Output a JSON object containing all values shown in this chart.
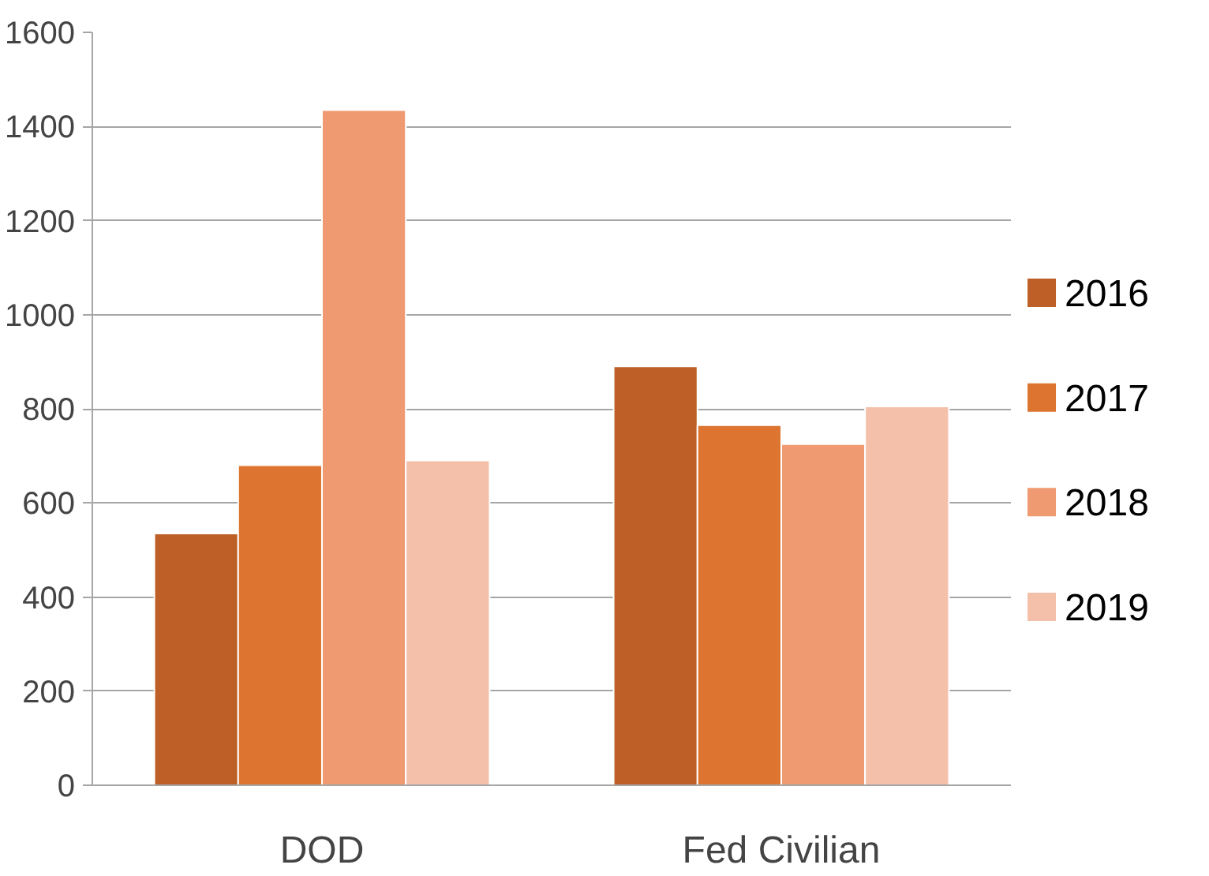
{
  "chart_data": {
    "type": "bar",
    "categories": [
      "DOD",
      "Fed Civilian"
    ],
    "series": [
      {
        "name": "2016",
        "color": "#bd5f26",
        "values": [
          535,
          890
        ]
      },
      {
        "name": "2017",
        "color": "#dd7530",
        "values": [
          680,
          765
        ]
      },
      {
        "name": "2018",
        "color": "#ef9a70",
        "values": [
          1435,
          725
        ]
      },
      {
        "name": "2019",
        "color": "#f4c0aa",
        "values": [
          690,
          805
        ]
      }
    ],
    "ylim": [
      0,
      1600
    ],
    "yticks": [
      0,
      200,
      400,
      600,
      800,
      1000,
      1200,
      1400,
      1600
    ],
    "grid": "y",
    "legend": "right"
  }
}
